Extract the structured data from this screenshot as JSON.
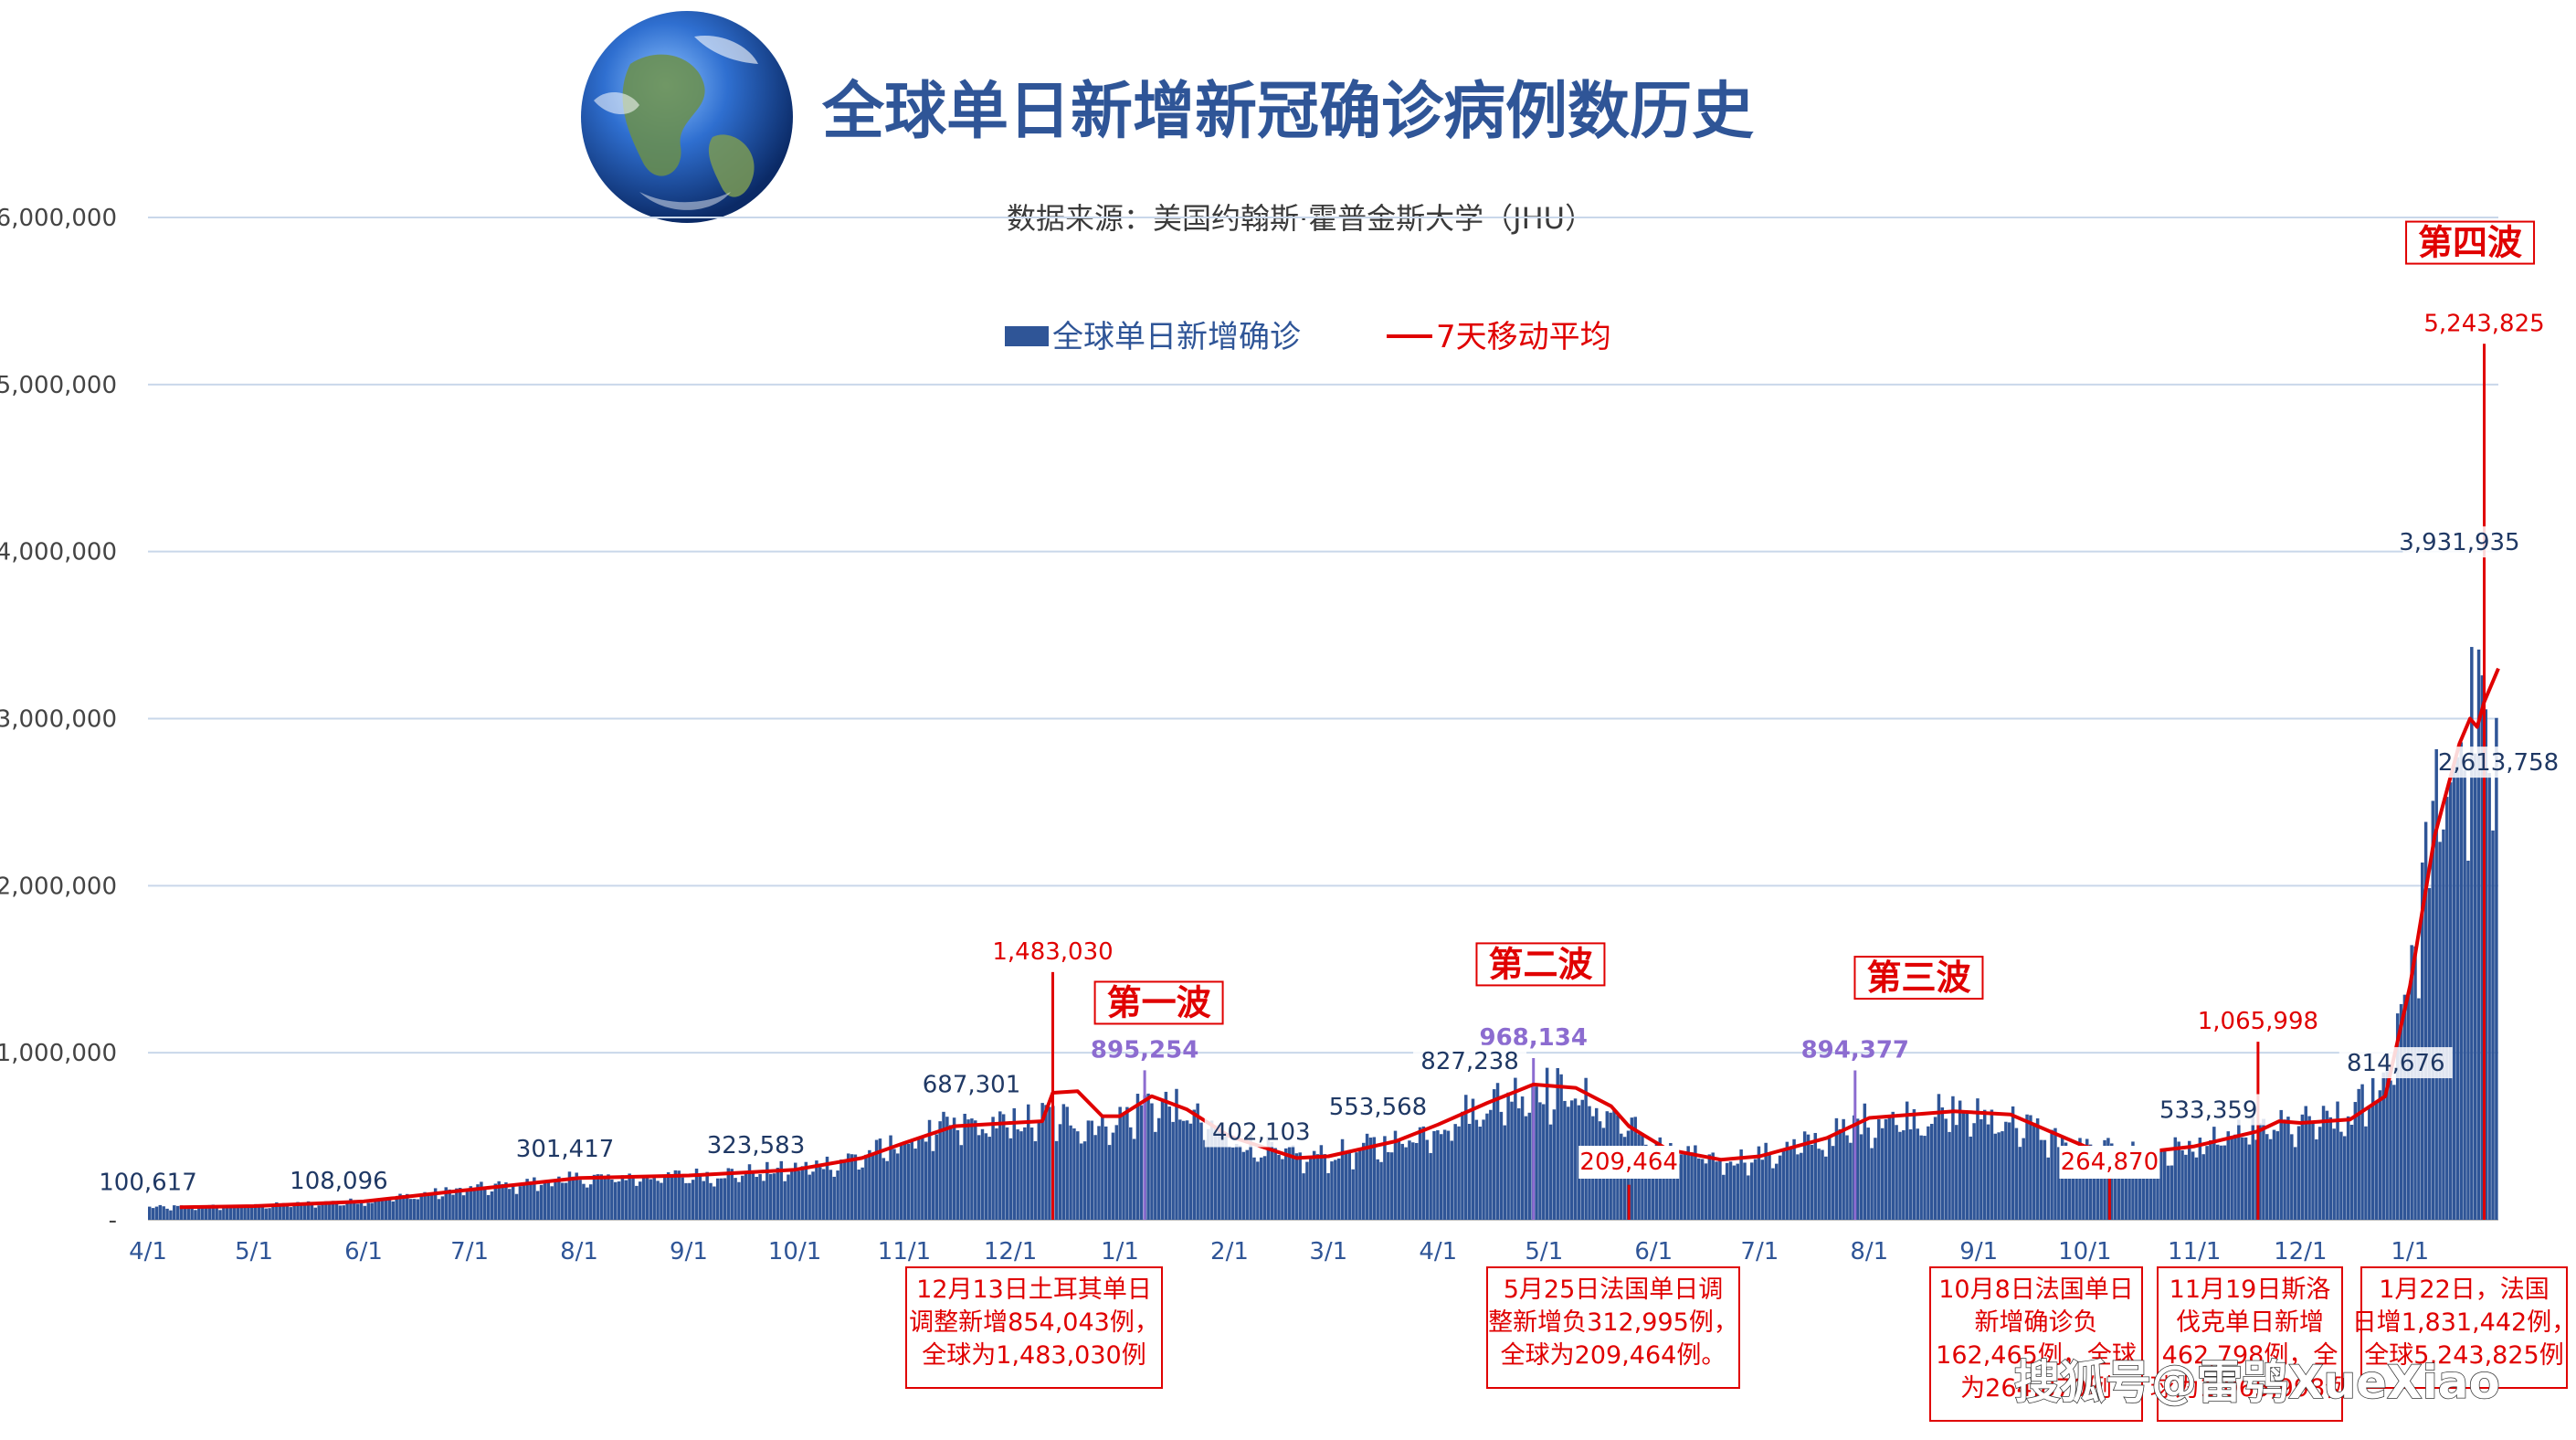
{
  "chart_data": {
    "type": "bar",
    "title": "全球单日新增新冠确诊病例数历史",
    "subtitle": "数据来源：美国约翰斯·霍普金斯大学（JHU）",
    "legend": [
      {
        "name": "全球单日新增确诊",
        "color": "#2f5597",
        "kind": "bar"
      },
      {
        "name": "7天移动平均",
        "color": "#e00000",
        "kind": "line"
      }
    ],
    "legend_placement": "top-center",
    "grid": true,
    "ylim": [
      0,
      6000000
    ],
    "yticks": [
      "-",
      "1,000,000",
      "2,000,000",
      "3,000,000",
      "4,000,000",
      "5,000,000",
      "6,000,000"
    ],
    "ytick_values": [
      0,
      1000000,
      2000000,
      3000000,
      4000000,
      5000000,
      6000000
    ],
    "x_start": "2020-04-01",
    "x_end": "2022-01-26",
    "xticks": [
      {
        "label": "4/1",
        "date": "2020-04-01"
      },
      {
        "label": "5/1",
        "date": "2020-05-01"
      },
      {
        "label": "6/1",
        "date": "2020-06-01"
      },
      {
        "label": "7/1",
        "date": "2020-07-01"
      },
      {
        "label": "8/1",
        "date": "2020-08-01"
      },
      {
        "label": "9/1",
        "date": "2020-09-01"
      },
      {
        "label": "10/1",
        "date": "2020-10-01"
      },
      {
        "label": "11/1",
        "date": "2020-11-01"
      },
      {
        "label": "12/1",
        "date": "2020-12-01"
      },
      {
        "label": "1/1",
        "date": "2021-01-01"
      },
      {
        "label": "2/1",
        "date": "2021-02-01"
      },
      {
        "label": "3/1",
        "date": "2021-03-01"
      },
      {
        "label": "4/1",
        "date": "2021-04-01"
      },
      {
        "label": "5/1",
        "date": "2021-05-01"
      },
      {
        "label": "6/1",
        "date": "2021-06-01"
      },
      {
        "label": "7/1",
        "date": "2021-07-01"
      },
      {
        "label": "8/1",
        "date": "2021-08-01"
      },
      {
        "label": "9/1",
        "date": "2021-09-01"
      },
      {
        "label": "10/1",
        "date": "2021-10-01"
      },
      {
        "label": "11/1",
        "date": "2021-11-01"
      },
      {
        "label": "12/1",
        "date": "2021-12-01"
      },
      {
        "label": "1/1",
        "date": "2022-01-01"
      }
    ],
    "trend": [
      {
        "date": "2020-04-01",
        "value": 75000
      },
      {
        "date": "2020-05-01",
        "value": 85000
      },
      {
        "date": "2020-06-01",
        "value": 115000
      },
      {
        "date": "2020-07-01",
        "value": 190000
      },
      {
        "date": "2020-08-01",
        "value": 255000
      },
      {
        "date": "2020-09-01",
        "value": 270000
      },
      {
        "date": "2020-10-01",
        "value": 310000
      },
      {
        "date": "2020-10-20",
        "value": 390000
      },
      {
        "date": "2020-11-01",
        "value": 480000
      },
      {
        "date": "2020-11-15",
        "value": 580000
      },
      {
        "date": "2020-12-01",
        "value": 590000
      },
      {
        "date": "2020-12-13",
        "value": 640000
      },
      {
        "date": "2020-12-25",
        "value": 590000
      },
      {
        "date": "2021-01-01",
        "value": 620000
      },
      {
        "date": "2021-01-10",
        "value": 740000
      },
      {
        "date": "2021-01-20",
        "value": 650000
      },
      {
        "date": "2021-02-01",
        "value": 500000
      },
      {
        "date": "2021-02-20",
        "value": 380000
      },
      {
        "date": "2021-03-01",
        "value": 400000
      },
      {
        "date": "2021-03-20",
        "value": 480000
      },
      {
        "date": "2021-04-01",
        "value": 580000
      },
      {
        "date": "2021-04-15",
        "value": 720000
      },
      {
        "date": "2021-04-28",
        "value": 820000
      },
      {
        "date": "2021-05-10",
        "value": 780000
      },
      {
        "date": "2021-05-25",
        "value": 580000
      },
      {
        "date": "2021-06-05",
        "value": 420000
      },
      {
        "date": "2021-06-20",
        "value": 370000
      },
      {
        "date": "2021-07-01",
        "value": 390000
      },
      {
        "date": "2021-07-20",
        "value": 500000
      },
      {
        "date": "2021-08-01",
        "value": 620000
      },
      {
        "date": "2021-08-25",
        "value": 660000
      },
      {
        "date": "2021-09-10",
        "value": 620000
      },
      {
        "date": "2021-10-01",
        "value": 430000
      },
      {
        "date": "2021-10-20",
        "value": 410000
      },
      {
        "date": "2021-11-01",
        "value": 450000
      },
      {
        "date": "2021-11-20",
        "value": 550000
      },
      {
        "date": "2021-12-01",
        "value": 590000
      },
      {
        "date": "2021-12-15",
        "value": 620000
      },
      {
        "date": "2021-12-25",
        "value": 860000
      },
      {
        "date": "2022-01-01",
        "value": 1500000
      },
      {
        "date": "2022-01-08",
        "value": 2400000
      },
      {
        "date": "2022-01-15",
        "value": 2900000
      },
      {
        "date": "2022-01-20",
        "value": 3050000
      },
      {
        "date": "2022-01-24",
        "value": 3000000
      },
      {
        "date": "2022-01-26",
        "value": 2613758
      }
    ],
    "ma7": [
      {
        "date": "2020-04-10",
        "value": 75000
      },
      {
        "date": "2020-05-01",
        "value": 82000
      },
      {
        "date": "2020-06-01",
        "value": 110000
      },
      {
        "date": "2020-07-01",
        "value": 180000
      },
      {
        "date": "2020-08-01",
        "value": 250000
      },
      {
        "date": "2020-09-01",
        "value": 265000
      },
      {
        "date": "2020-10-01",
        "value": 300000
      },
      {
        "date": "2020-10-20",
        "value": 370000
      },
      {
        "date": "2020-11-01",
        "value": 460000
      },
      {
        "date": "2020-11-15",
        "value": 560000
      },
      {
        "date": "2020-12-01",
        "value": 580000
      },
      {
        "date": "2020-12-10",
        "value": 590000
      },
      {
        "date": "2020-12-13",
        "value": 760000
      },
      {
        "date": "2020-12-20",
        "value": 770000
      },
      {
        "date": "2020-12-27",
        "value": 620000
      },
      {
        "date": "2021-01-01",
        "value": 620000
      },
      {
        "date": "2021-01-10",
        "value": 740000
      },
      {
        "date": "2021-01-20",
        "value": 660000
      },
      {
        "date": "2021-02-01",
        "value": 500000
      },
      {
        "date": "2021-02-20",
        "value": 370000
      },
      {
        "date": "2021-03-01",
        "value": 380000
      },
      {
        "date": "2021-03-20",
        "value": 470000
      },
      {
        "date": "2021-04-01",
        "value": 570000
      },
      {
        "date": "2021-04-15",
        "value": 700000
      },
      {
        "date": "2021-04-28",
        "value": 810000
      },
      {
        "date": "2021-05-10",
        "value": 790000
      },
      {
        "date": "2021-05-20",
        "value": 680000
      },
      {
        "date": "2021-05-25",
        "value": 560000
      },
      {
        "date": "2021-06-05",
        "value": 420000
      },
      {
        "date": "2021-06-20",
        "value": 360000
      },
      {
        "date": "2021-07-01",
        "value": 380000
      },
      {
        "date": "2021-07-20",
        "value": 490000
      },
      {
        "date": "2021-08-01",
        "value": 610000
      },
      {
        "date": "2021-08-25",
        "value": 650000
      },
      {
        "date": "2021-09-10",
        "value": 630000
      },
      {
        "date": "2021-10-01",
        "value": 440000
      },
      {
        "date": "2021-10-08",
        "value": 410000
      },
      {
        "date": "2021-10-20",
        "value": 410000
      },
      {
        "date": "2021-11-01",
        "value": 440000
      },
      {
        "date": "2021-11-19",
        "value": 530000
      },
      {
        "date": "2021-11-25",
        "value": 590000
      },
      {
        "date": "2021-12-01",
        "value": 580000
      },
      {
        "date": "2021-12-15",
        "value": 600000
      },
      {
        "date": "2021-12-25",
        "value": 740000
      },
      {
        "date": "2022-01-01",
        "value": 1400000
      },
      {
        "date": "2022-01-08",
        "value": 2300000
      },
      {
        "date": "2022-01-15",
        "value": 2850000
      },
      {
        "date": "2022-01-18",
        "value": 3000000
      },
      {
        "date": "2022-01-20",
        "value": 2950000
      },
      {
        "date": "2022-01-22",
        "value": 3100000
      },
      {
        "date": "2022-01-26",
        "value": 3300000
      }
    ],
    "spikes": [
      {
        "date": "2020-12-13",
        "value": 1483030,
        "label": "1,483,030",
        "color": "#e00000"
      },
      {
        "date": "2021-01-08",
        "value": 895254,
        "label": "895,254",
        "color": "#8c6cd0"
      },
      {
        "date": "2021-04-28",
        "value": 968134,
        "label": "968,134",
        "color": "#8c6cd0"
      },
      {
        "date": "2021-05-25",
        "value": 209464,
        "label": "209,464",
        "color": "#e00000"
      },
      {
        "date": "2021-07-28",
        "value": 894377,
        "label": "894,377",
        "color": "#8c6cd0"
      },
      {
        "date": "2021-10-08",
        "value": 264870,
        "label": "264,870",
        "color": "#e00000"
      },
      {
        "date": "2021-11-19",
        "value": 1065998,
        "label": "1,065,998",
        "color": "#e00000"
      },
      {
        "date": "2022-01-22",
        "value": 5243825,
        "label": "5,243,825",
        "color": "#e00000"
      }
    ],
    "data_labels": [
      {
        "date": "2020-04-01",
        "value": 100617,
        "label": "100,617"
      },
      {
        "date": "2020-05-25",
        "value": 108096,
        "label": "108,096"
      },
      {
        "date": "2020-07-28",
        "value": 301417,
        "label": "301,417"
      },
      {
        "date": "2020-09-20",
        "value": 323583,
        "label": "323,583"
      },
      {
        "date": "2020-11-20",
        "value": 687301,
        "label": "687,301"
      },
      {
        "date": "2021-02-10",
        "value": 402103,
        "label": "402,103"
      },
      {
        "date": "2021-03-15",
        "value": 553568,
        "label": "553,568"
      },
      {
        "date": "2021-04-10",
        "value": 827238,
        "label": "827,238"
      },
      {
        "date": "2021-11-05",
        "value": 533359,
        "label": "533,359"
      },
      {
        "date": "2021-12-28",
        "value": 814676,
        "label": "814,676"
      },
      {
        "date": "2022-01-15",
        "value": 3931935,
        "label": "3,931,935"
      },
      {
        "date": "2022-01-26",
        "value": 2613758,
        "label": "2,613,758"
      }
    ],
    "waves": [
      {
        "label": "第一波",
        "date": "2021-01-12",
        "value": 1250000
      },
      {
        "label": "第二波",
        "date": "2021-04-30",
        "value": 1480000
      },
      {
        "label": "第三波",
        "date": "2021-08-15",
        "value": 1400000
      },
      {
        "label": "第四波",
        "date": "2022-01-18",
        "value": 5800000
      }
    ],
    "notes": [
      {
        "lines": [
          "12月13日土耳其单日",
          "调整新增854,043例，",
          "全球为1,483,030例"
        ]
      },
      {
        "lines": [
          "5月25日法国单日调",
          "整新增负312,995例，",
          "全球为209,464例。"
        ]
      },
      {
        "lines": [
          "10月8日法国单日",
          "新增确诊负",
          "162,465例，全球",
          "为264,870例"
        ]
      },
      {
        "lines": [
          "11月19日斯洛",
          "伐克单日新增",
          "462,798例，全",
          "球为1,065,998例"
        ]
      },
      {
        "lines": [
          "1月22日，法国",
          "日增1,831,442例，",
          "全球5,243,825例"
        ]
      }
    ]
  },
  "watermark": "搜狐号@雷鸮XueXiao"
}
